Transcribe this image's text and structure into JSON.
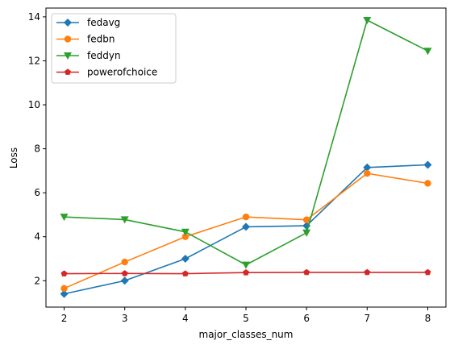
{
  "chart_data": {
    "type": "line",
    "title": "",
    "xlabel": "major_classes_num",
    "ylabel": "Loss",
    "x": [
      2,
      3,
      4,
      5,
      6,
      7,
      8
    ],
    "xlim": [
      1.7,
      8.3
    ],
    "ylim": [
      0.8,
      14.4
    ],
    "xticks": [
      "2",
      "3",
      "4",
      "5",
      "6",
      "7",
      "8"
    ],
    "yticks": [
      "2",
      "4",
      "6",
      "8",
      "10",
      "12",
      "14"
    ],
    "grid": false,
    "legend_position": "top-left",
    "series": [
      {
        "name": "fedavg",
        "color": "#1f77b4",
        "marker": "diamond",
        "values": [
          1.4,
          2.0,
          3.0,
          4.45,
          4.5,
          7.15,
          7.27
        ]
      },
      {
        "name": "fedbn",
        "color": "#ff7f0e",
        "marker": "circle",
        "values": [
          1.65,
          2.85,
          4.0,
          4.9,
          4.77,
          6.88,
          6.43
        ]
      },
      {
        "name": "feddyn",
        "color": "#2ca02c",
        "marker": "triangle-down",
        "values": [
          4.9,
          4.78,
          4.22,
          2.72,
          4.18,
          13.85,
          12.45
        ]
      },
      {
        "name": "powerofchoice",
        "color": "#d62728",
        "marker": "pentagon",
        "values": [
          2.32,
          2.33,
          2.32,
          2.37,
          2.38,
          2.38,
          2.38
        ]
      }
    ]
  }
}
